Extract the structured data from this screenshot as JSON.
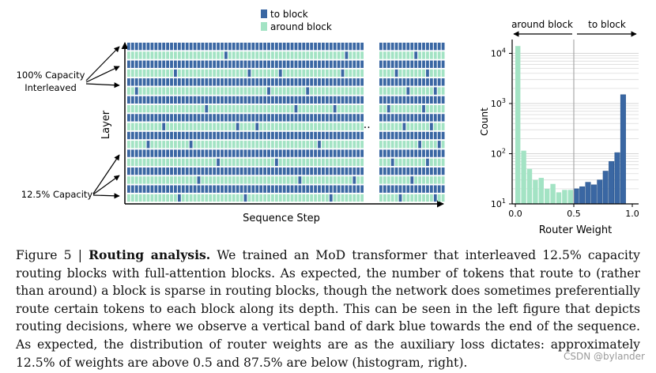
{
  "colors": {
    "to_block": "#3a67a3",
    "around_block": "#a3e3c4",
    "bar_edge": "#2f5a90"
  },
  "routing_panel": {
    "legend": {
      "to_block": "to block",
      "around_block": "around block"
    },
    "ylabel": "Layer",
    "xlabel": "Sequence Step",
    "ellipsis": "...",
    "label_full_capacity": [
      "100% Capacity",
      "Interleaved"
    ],
    "label_routing": "12.5% Capacity"
  },
  "chart_data": [
    {
      "type": "heatmap",
      "title": "",
      "xlabel": "Sequence Step",
      "ylabel": "Layer",
      "value_meaning": "1 = token routed to block, 0 = routed around block",
      "segments": [
        {
          "name": "left",
          "rows": [
            "1111111111111111111111111111111111111111111111111111111111111",
            "0000000000000000000000000000000000000000000000000000000000000",
            "1111111111111111111111111111111111111111111111111111111111111",
            "0000000000000000000000000000000000000000000000000000000000000",
            "1111111111111111111111111111111111111111111111111111111111111",
            "0000000000000000000000000000000000000000000000000000000000000",
            "1111111111111111111111111111111111111111111111111111111111111",
            "0000000000000000000000000000000000000000000000000000000000000",
            "1111111111111111111111111111111111111111111111111111111111111",
            "0000000000000000000000000000000000000000000000000000000000000",
            "1111111111111111111111111111111111111111111111111111111111111",
            "0000000000000000000000000000000000000000000000000000000000000",
            "1111111111111111111111111111111111111111111111111111111111111",
            "0000000000000000000000000000000000000000000000000000000000000",
            "1111111111111111111111111111111111111111111111111111111111111",
            "0000000000000000000000000000000000000000000000000000000000000",
            "1111111111111111111111111111111111111111111111111111111111111",
            "0000000000000000000000000000000000000000000000000000000000000"
          ]
        },
        {
          "name": "right",
          "rows": [
            "11111111111111111",
            "00000000000000000",
            "11111111111111111",
            "00000000000000000",
            "11111111111111111",
            "00000000000000000",
            "11111111111111111",
            "00000000000000000",
            "11111111111111111",
            "00000000000000000",
            "11111111111111111",
            "00000000000000000",
            "11111111111111111",
            "00000000000000000",
            "11111111111111111",
            "00000000000000000",
            "11111111111111111",
            "00000000000000000"
          ]
        }
      ],
      "routed_cells_in_sparse_rows": [
        {
          "segment": "left",
          "row": 1,
          "cols": [
            25,
            56
          ]
        },
        {
          "segment": "left",
          "row": 3,
          "cols": [
            12,
            31,
            39,
            55
          ]
        },
        {
          "segment": "left",
          "row": 5,
          "cols": [
            2,
            36,
            46
          ]
        },
        {
          "segment": "left",
          "row": 7,
          "cols": [
            20,
            43,
            53
          ]
        },
        {
          "segment": "left",
          "row": 9,
          "cols": [
            9,
            28,
            33
          ]
        },
        {
          "segment": "left",
          "row": 11,
          "cols": [
            5,
            16,
            49
          ]
        },
        {
          "segment": "left",
          "row": 13,
          "cols": [
            23,
            38
          ]
        },
        {
          "segment": "left",
          "row": 15,
          "cols": [
            18,
            44,
            58
          ]
        },
        {
          "segment": "left",
          "row": 17,
          "cols": [
            13,
            30,
            52
          ]
        },
        {
          "segment": "right",
          "row": 1,
          "cols": [
            9
          ]
        },
        {
          "segment": "right",
          "row": 3,
          "cols": [
            4,
            12
          ]
        },
        {
          "segment": "right",
          "row": 5,
          "cols": [
            7,
            14
          ]
        },
        {
          "segment": "right",
          "row": 7,
          "cols": [
            2,
            11
          ]
        },
        {
          "segment": "right",
          "row": 9,
          "cols": [
            6,
            13
          ]
        },
        {
          "segment": "right",
          "row": 11,
          "cols": [
            10,
            15
          ]
        },
        {
          "segment": "right",
          "row": 13,
          "cols": [
            3,
            12
          ]
        },
        {
          "segment": "right",
          "row": 15,
          "cols": [
            8
          ]
        },
        {
          "segment": "right",
          "row": 17,
          "cols": [
            5,
            14
          ]
        }
      ]
    },
    {
      "type": "bar",
      "title": "",
      "xlabel": "Router Weight",
      "ylabel": "Count",
      "yscale": "log",
      "ylim": [
        10,
        20000
      ],
      "xlim": [
        0.0,
        1.0
      ],
      "xticks": [
        "0.0",
        "0.5",
        "1.0"
      ],
      "yticks": [
        {
          "value": 10,
          "base": "10",
          "exp": "1"
        },
        {
          "value": 100,
          "base": "10",
          "exp": "2"
        },
        {
          "value": 1000,
          "base": "10",
          "exp": "3"
        },
        {
          "value": 10000,
          "base": "10",
          "exp": "4"
        }
      ],
      "threshold": 0.5,
      "region_labels": {
        "left": "around block",
        "right": "to block"
      },
      "bin_width": 0.05,
      "bins": [
        {
          "x": 0.0,
          "count": 14000,
          "group": "around_block"
        },
        {
          "x": 0.05,
          "count": 115,
          "group": "around_block"
        },
        {
          "x": 0.1,
          "count": 50,
          "group": "around_block"
        },
        {
          "x": 0.15,
          "count": 30,
          "group": "around_block"
        },
        {
          "x": 0.2,
          "count": 33,
          "group": "around_block"
        },
        {
          "x": 0.25,
          "count": 20,
          "group": "around_block"
        },
        {
          "x": 0.3,
          "count": 25,
          "group": "around_block"
        },
        {
          "x": 0.35,
          "count": 17,
          "group": "around_block"
        },
        {
          "x": 0.4,
          "count": 19,
          "group": "around_block"
        },
        {
          "x": 0.45,
          "count": 19,
          "group": "around_block"
        },
        {
          "x": 0.5,
          "count": 20,
          "group": "to_block"
        },
        {
          "x": 0.55,
          "count": 22,
          "group": "to_block"
        },
        {
          "x": 0.6,
          "count": 27,
          "group": "to_block"
        },
        {
          "x": 0.65,
          "count": 24,
          "group": "to_block"
        },
        {
          "x": 0.7,
          "count": 30,
          "group": "to_block"
        },
        {
          "x": 0.75,
          "count": 45,
          "group": "to_block"
        },
        {
          "x": 0.8,
          "count": 70,
          "group": "to_block"
        },
        {
          "x": 0.85,
          "count": 105,
          "group": "to_block"
        },
        {
          "x": 0.9,
          "count": 1500,
          "group": "to_block"
        }
      ]
    }
  ],
  "caption": {
    "prefix": "Figure 5 | ",
    "title": "Routing analysis.",
    "body": " We trained an MoD transformer that interleaved 12.5% capacity routing blocks with full-attention blocks. As expected, the number of tokens that route to (rather than around) a block is sparse in routing blocks, though the network does sometimes preferentially route certain tokens to each block along its depth. This can be seen in the left figure that depicts routing decisions, where we observe a vertical band of dark blue towards the end of the sequence. As expected, the distribution of router weights are as the auxiliary loss dictates: approximately 12.5% of weights are above 0.5 and 87.5% are below (histogram, right)."
  },
  "watermark": "CSDN @bylander"
}
